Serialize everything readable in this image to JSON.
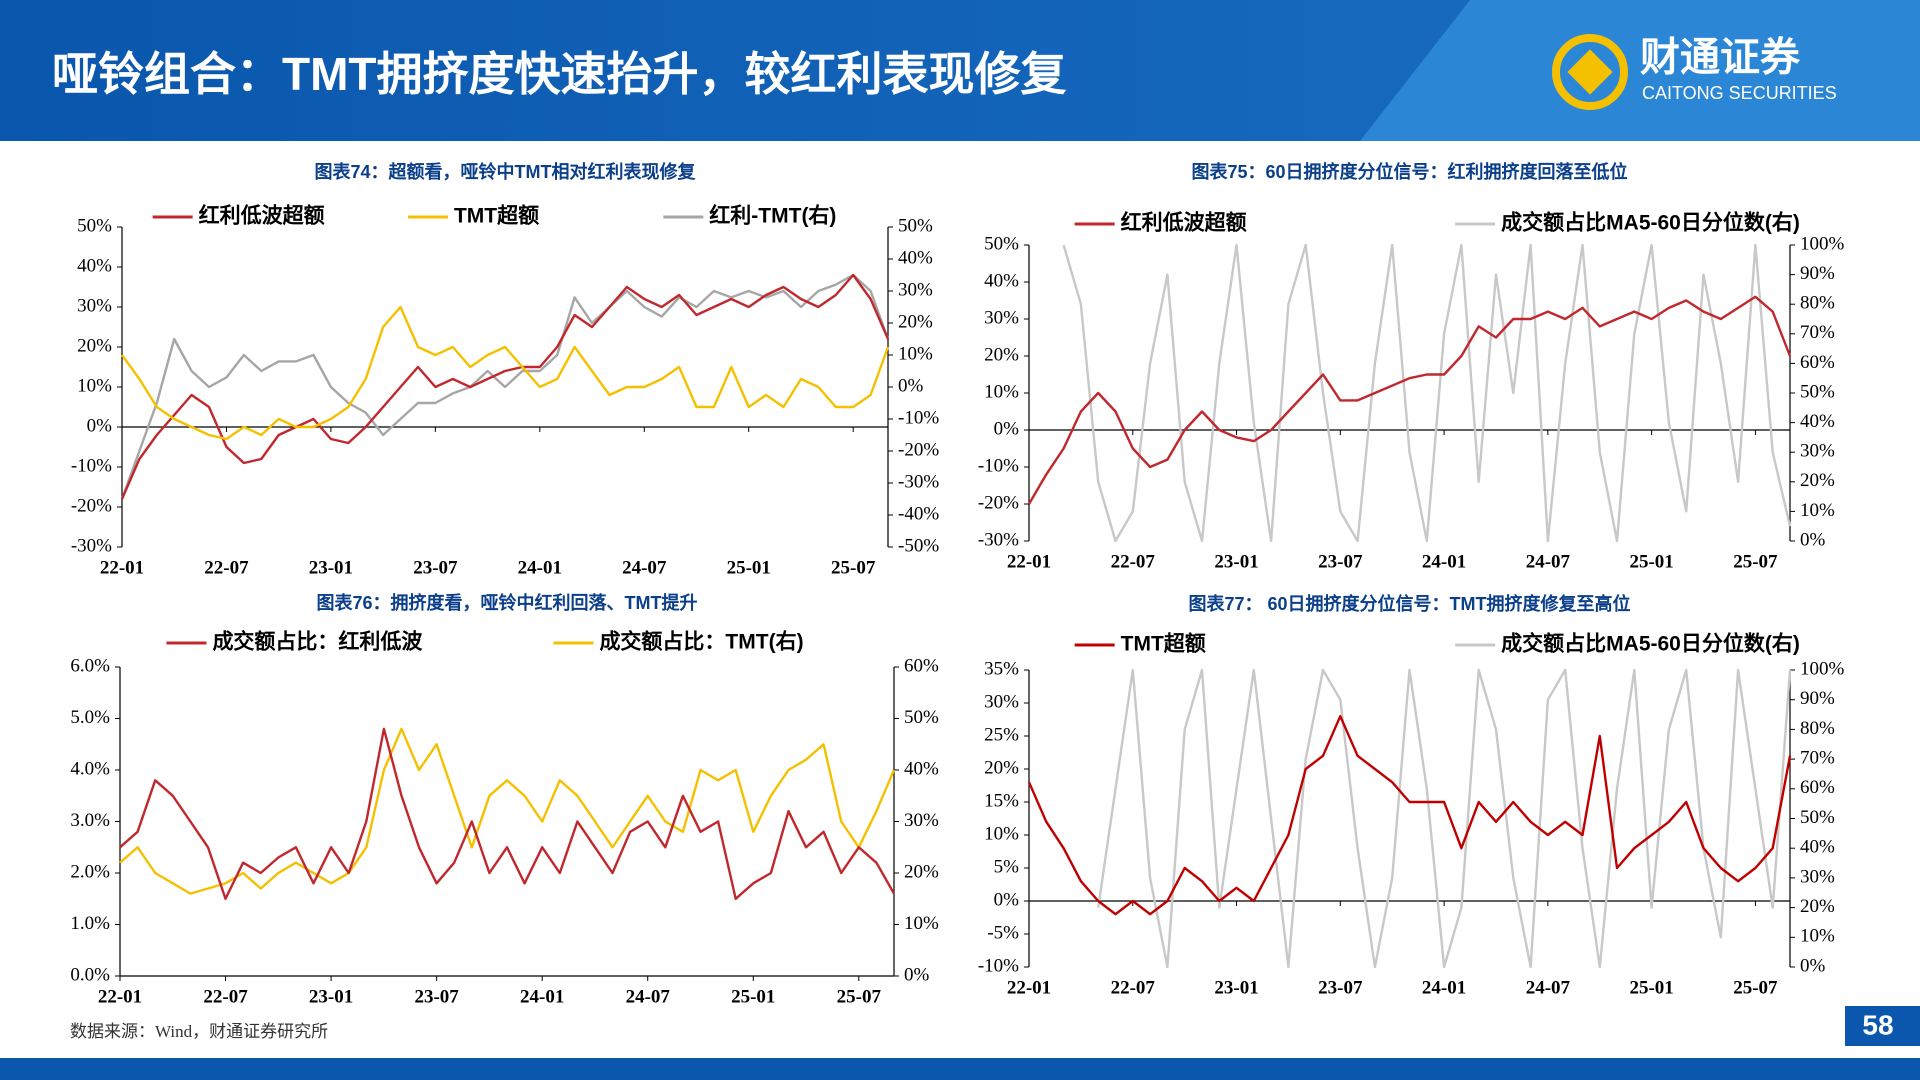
{
  "header": {
    "title": "哑铃组合：TMT拥挤度快速抬升，较红利表现修复"
  },
  "logo": {
    "name": "财通证券",
    "subtitle": "CAITONG SECURITIES"
  },
  "page_number": "58",
  "source": "数据来源：Wind，财通证券研究所",
  "chart_data": [
    {
      "type": "line",
      "title": "图表74：超额看，哑铃中TMT相对红利表现修复",
      "categories": [
        "22-01",
        null,
        null,
        null,
        null,
        null,
        "22-07",
        null,
        null,
        null,
        null,
        null,
        "23-01",
        null,
        null,
        null,
        null,
        null,
        "23-07",
        null,
        null,
        null,
        null,
        null,
        "24-01",
        null,
        null,
        null,
        null,
        null,
        "24-07",
        null,
        null,
        null,
        null,
        null,
        "25-01",
        null,
        null,
        null,
        null,
        null,
        "25-07",
        null,
        null
      ],
      "series": [
        {
          "name": "红利低波超额",
          "color": "#c0282d",
          "values": [
            -18,
            -8,
            -2,
            3,
            8,
            5,
            -5,
            -9,
            -8,
            -2,
            0,
            2,
            -3,
            -4,
            0,
            5,
            10,
            15,
            10,
            12,
            10,
            12,
            14,
            15,
            15,
            20,
            28,
            25,
            30,
            35,
            32,
            30,
            33,
            28,
            30,
            32,
            30,
            33,
            35,
            32,
            30,
            33,
            38,
            32,
            22
          ]
        },
        {
          "name": "TMT超额",
          "color": "#f5c000",
          "values": [
            18,
            12,
            5,
            2,
            0,
            -2,
            -3,
            0,
            -2,
            2,
            0,
            0,
            2,
            5,
            12,
            25,
            30,
            20,
            18,
            20,
            15,
            18,
            20,
            15,
            10,
            12,
            20,
            14,
            8,
            10,
            10,
            12,
            15,
            5,
            5,
            15,
            5,
            8,
            5,
            12,
            10,
            5,
            5,
            8,
            20
          ]
        },
        {
          "name": "红利-TMT(右)",
          "color": "#a6a6a6",
          "axis": "y2",
          "values": [
            -35,
            -20,
            -5,
            15,
            5,
            0,
            3,
            10,
            5,
            8,
            8,
            10,
            0,
            -5,
            -8,
            -15,
            -10,
            -5,
            -5,
            -2,
            0,
            5,
            0,
            5,
            5,
            10,
            28,
            20,
            25,
            30,
            25,
            22,
            28,
            25,
            30,
            28,
            30,
            28,
            30,
            25,
            30,
            32,
            35,
            30,
            15
          ]
        }
      ],
      "ylim": [
        -30,
        50
      ],
      "yticks": [
        {
          "value": -30,
          "label": "-30%"
        },
        {
          "value": -20,
          "label": "-20%"
        },
        {
          "value": -10,
          "label": "-10%"
        },
        {
          "value": 0,
          "label": "0%"
        },
        {
          "value": 10,
          "label": "10%"
        },
        {
          "value": 20,
          "label": "20%"
        },
        {
          "value": 30,
          "label": "30%"
        },
        {
          "value": 40,
          "label": "40%"
        },
        {
          "value": 50,
          "label": "50%"
        }
      ],
      "y2lim": [
        -50,
        50
      ],
      "y2ticks": [
        {
          "value": -50,
          "label": "-50%"
        },
        {
          "value": -40,
          "label": "-40%"
        },
        {
          "value": -30,
          "label": "-30%"
        },
        {
          "value": -20,
          "label": "-20%"
        },
        {
          "value": -10,
          "label": "-10%"
        },
        {
          "value": 0,
          "label": "0%"
        },
        {
          "value": 10,
          "label": "10%"
        },
        {
          "value": 20,
          "label": "20%"
        },
        {
          "value": 30,
          "label": "30%"
        },
        {
          "value": 40,
          "label": "40%"
        },
        {
          "value": 50,
          "label": "50%"
        }
      ]
    },
    {
      "type": "line",
      "title": "图表75：60日拥挤度分位信号：红利拥挤度回落至低位",
      "categories": [
        "22-01",
        null,
        null,
        null,
        null,
        null,
        "22-07",
        null,
        null,
        null,
        null,
        null,
        "23-01",
        null,
        null,
        null,
        null,
        null,
        "23-07",
        null,
        null,
        null,
        null,
        null,
        "24-01",
        null,
        null,
        null,
        null,
        null,
        "24-07",
        null,
        null,
        null,
        null,
        null,
        "25-01",
        null,
        null,
        null,
        null,
        null,
        "25-07",
        null,
        null
      ],
      "series": [
        {
          "name": "红利低波超额",
          "color": "#c0282d",
          "values": [
            -20,
            -12,
            -5,
            5,
            10,
            5,
            -5,
            -10,
            -8,
            0,
            5,
            0,
            -2,
            -3,
            0,
            5,
            10,
            15,
            8,
            8,
            10,
            12,
            14,
            15,
            15,
            20,
            28,
            25,
            30,
            30,
            32,
            30,
            33,
            28,
            30,
            32,
            30,
            33,
            35,
            32,
            30,
            33,
            36,
            32,
            20
          ]
        },
        {
          "name": "成交额占比MA5-60日分位数(右)",
          "color": "#c8c8c8",
          "axis": "y2",
          "values": [
            null,
            null,
            100,
            80,
            20,
            0,
            10,
            60,
            90,
            20,
            0,
            60,
            100,
            40,
            0,
            80,
            100,
            50,
            10,
            0,
            60,
            100,
            30,
            0,
            70,
            100,
            20,
            90,
            50,
            100,
            0,
            60,
            100,
            30,
            0,
            70,
            100,
            40,
            10,
            90,
            60,
            20,
            100,
            30,
            5
          ]
        }
      ],
      "ylim": [
        -30,
        50
      ],
      "yticks": [
        {
          "value": -30,
          "label": "-30%"
        },
        {
          "value": -20,
          "label": "-20%"
        },
        {
          "value": -10,
          "label": "-10%"
        },
        {
          "value": 0,
          "label": "0%"
        },
        {
          "value": 10,
          "label": "10%"
        },
        {
          "value": 20,
          "label": "20%"
        },
        {
          "value": 30,
          "label": "30%"
        },
        {
          "value": 40,
          "label": "40%"
        },
        {
          "value": 50,
          "label": "50%"
        }
      ],
      "y2lim": [
        0,
        100
      ],
      "y2ticks": [
        {
          "value": 0,
          "label": "0%"
        },
        {
          "value": 10,
          "label": "10%"
        },
        {
          "value": 20,
          "label": "20%"
        },
        {
          "value": 30,
          "label": "30%"
        },
        {
          "value": 40,
          "label": "40%"
        },
        {
          "value": 50,
          "label": "50%"
        },
        {
          "value": 60,
          "label": "60%"
        },
        {
          "value": 70,
          "label": "70%"
        },
        {
          "value": 80,
          "label": "80%"
        },
        {
          "value": 90,
          "label": "90%"
        },
        {
          "value": 100,
          "label": "100%"
        }
      ]
    },
    {
      "type": "line",
      "title": "图表76：拥挤度看，哑铃中红利回落、TMT提升",
      "categories": [
        "22-01",
        null,
        null,
        null,
        null,
        null,
        "22-07",
        null,
        null,
        null,
        null,
        null,
        "23-01",
        null,
        null,
        null,
        null,
        null,
        "23-07",
        null,
        null,
        null,
        null,
        null,
        "24-01",
        null,
        null,
        null,
        null,
        null,
        "24-07",
        null,
        null,
        null,
        null,
        null,
        "25-01",
        null,
        null,
        null,
        null,
        null,
        "25-07",
        null,
        null
      ],
      "series": [
        {
          "name": "成交额占比：红利低波",
          "color": "#c0282d",
          "values": [
            2.5,
            2.8,
            3.8,
            3.5,
            3.0,
            2.5,
            1.5,
            2.2,
            2.0,
            2.3,
            2.5,
            1.8,
            2.5,
            2.0,
            3.0,
            4.8,
            3.5,
            2.5,
            1.8,
            2.2,
            3.0,
            2.0,
            2.5,
            1.8,
            2.5,
            2.0,
            3.0,
            2.5,
            2.0,
            2.8,
            3.0,
            2.5,
            3.5,
            2.8,
            3.0,
            1.5,
            1.8,
            2.0,
            3.2,
            2.5,
            2.8,
            2.0,
            2.5,
            2.2,
            1.6
          ]
        },
        {
          "name": "成交额占比：TMT(右)",
          "color": "#f5c000",
          "axis": "y2",
          "values": [
            22,
            25,
            20,
            18,
            16,
            17,
            18,
            20,
            17,
            20,
            22,
            20,
            18,
            20,
            25,
            40,
            48,
            40,
            45,
            35,
            25,
            35,
            38,
            35,
            30,
            38,
            35,
            30,
            25,
            30,
            35,
            30,
            28,
            40,
            38,
            40,
            28,
            35,
            40,
            42,
            45,
            30,
            25,
            32,
            40
          ]
        }
      ],
      "ylim": [
        0,
        6
      ],
      "yticks": [
        {
          "value": 0,
          "label": "0.0%"
        },
        {
          "value": 1,
          "label": "1.0%"
        },
        {
          "value": 2,
          "label": "2.0%"
        },
        {
          "value": 3,
          "label": "3.0%"
        },
        {
          "value": 4,
          "label": "4.0%"
        },
        {
          "value": 5,
          "label": "5.0%"
        },
        {
          "value": 6,
          "label": "6.0%"
        }
      ],
      "y2lim": [
        0,
        60
      ],
      "y2ticks": [
        {
          "value": 0,
          "label": "0%"
        },
        {
          "value": 10,
          "label": "10%"
        },
        {
          "value": 20,
          "label": "20%"
        },
        {
          "value": 30,
          "label": "30%"
        },
        {
          "value": 40,
          "label": "40%"
        },
        {
          "value": 50,
          "label": "50%"
        },
        {
          "value": 60,
          "label": "60%"
        }
      ]
    },
    {
      "type": "line",
      "title": "图表77： 60日拥挤度分位信号：TMT拥挤度修复至高位",
      "categories": [
        "22-01",
        null,
        null,
        null,
        null,
        null,
        "22-07",
        null,
        null,
        null,
        null,
        null,
        "23-01",
        null,
        null,
        null,
        null,
        null,
        "23-07",
        null,
        null,
        null,
        null,
        null,
        "24-01",
        null,
        null,
        null,
        null,
        null,
        "24-07",
        null,
        null,
        null,
        null,
        null,
        "25-01",
        null,
        null,
        null,
        null,
        null,
        "25-07",
        null,
        null
      ],
      "series": [
        {
          "name": "TMT超额",
          "color": "#c00000",
          "values": [
            18,
            12,
            8,
            3,
            0,
            -2,
            0,
            -2,
            0,
            5,
            3,
            0,
            2,
            0,
            5,
            10,
            20,
            22,
            28,
            22,
            20,
            18,
            15,
            15,
            15,
            8,
            15,
            12,
            15,
            12,
            10,
            12,
            10,
            25,
            5,
            8,
            10,
            12,
            15,
            8,
            5,
            3,
            5,
            8,
            22
          ]
        },
        {
          "name": "成交额占比MA5-60日分位数(右)",
          "color": "#c8c8c8",
          "axis": "y2",
          "values": [
            null,
            null,
            null,
            null,
            20,
            60,
            100,
            30,
            0,
            80,
            100,
            20,
            60,
            100,
            50,
            0,
            70,
            100,
            90,
            40,
            0,
            30,
            100,
            60,
            0,
            20,
            100,
            80,
            30,
            0,
            90,
            100,
            40,
            0,
            60,
            100,
            20,
            80,
            100,
            40,
            10,
            100,
            60,
            20,
            100
          ]
        }
      ],
      "ylim": [
        -10,
        35
      ],
      "yticks": [
        {
          "value": -10,
          "label": "-10%"
        },
        {
          "value": -5,
          "label": "-5%"
        },
        {
          "value": 0,
          "label": "0%"
        },
        {
          "value": 5,
          "label": "5%"
        },
        {
          "value": 10,
          "label": "10%"
        },
        {
          "value": 15,
          "label": "15%"
        },
        {
          "value": 20,
          "label": "20%"
        },
        {
          "value": 25,
          "label": "25%"
        },
        {
          "value": 30,
          "label": "30%"
        },
        {
          "value": 35,
          "label": "35%"
        }
      ],
      "y2lim": [
        0,
        100
      ],
      "y2ticks": [
        {
          "value": 0,
          "label": "0%"
        },
        {
          "value": 10,
          "label": "10%"
        },
        {
          "value": 20,
          "label": "20%"
        },
        {
          "value": 30,
          "label": "30%"
        },
        {
          "value": 40,
          "label": "40%"
        },
        {
          "value": 50,
          "label": "50%"
        },
        {
          "value": 60,
          "label": "60%"
        },
        {
          "value": 70,
          "label": "70%"
        },
        {
          "value": 80,
          "label": "80%"
        },
        {
          "value": 90,
          "label": "90%"
        },
        {
          "value": 100,
          "label": "100%"
        }
      ]
    }
  ]
}
